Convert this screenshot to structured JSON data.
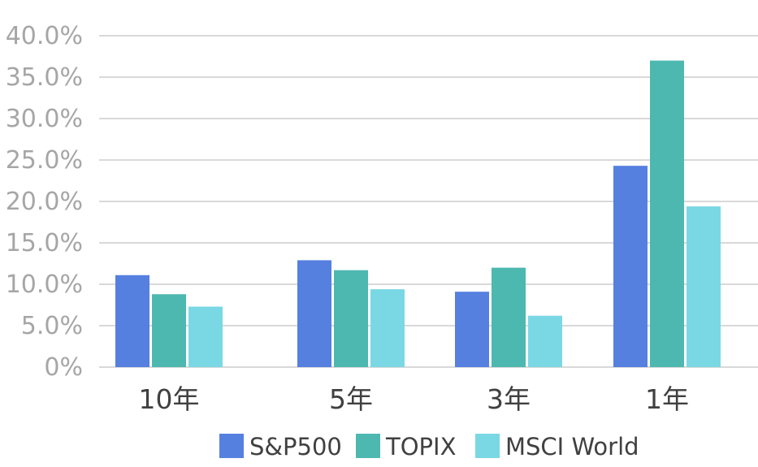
{
  "chart_data": {
    "type": "bar",
    "categories": [
      "10年",
      "5年",
      "3年",
      "1年"
    ],
    "series": [
      {
        "name": "S&P500",
        "color": "#5580e0",
        "values": [
          11.1,
          12.9,
          9.1,
          24.3
        ]
      },
      {
        "name": "TOPIX",
        "color": "#4db8b0",
        "values": [
          8.8,
          11.7,
          12.0,
          37.0
        ]
      },
      {
        "name": "MSCI World",
        "color": "#79d8e4",
        "values": [
          7.3,
          9.4,
          6.2,
          19.4
        ]
      }
    ],
    "y_ticks": [
      "0%",
      "5.0%",
      "10.0%",
      "15.0%",
      "20.0%",
      "25.0%",
      "30.0%",
      "35.0%",
      "40.0%"
    ],
    "ylim": [
      0,
      40
    ],
    "grid": true,
    "legend_position": "bottom",
    "title": "",
    "xlabel": "",
    "ylabel": ""
  }
}
